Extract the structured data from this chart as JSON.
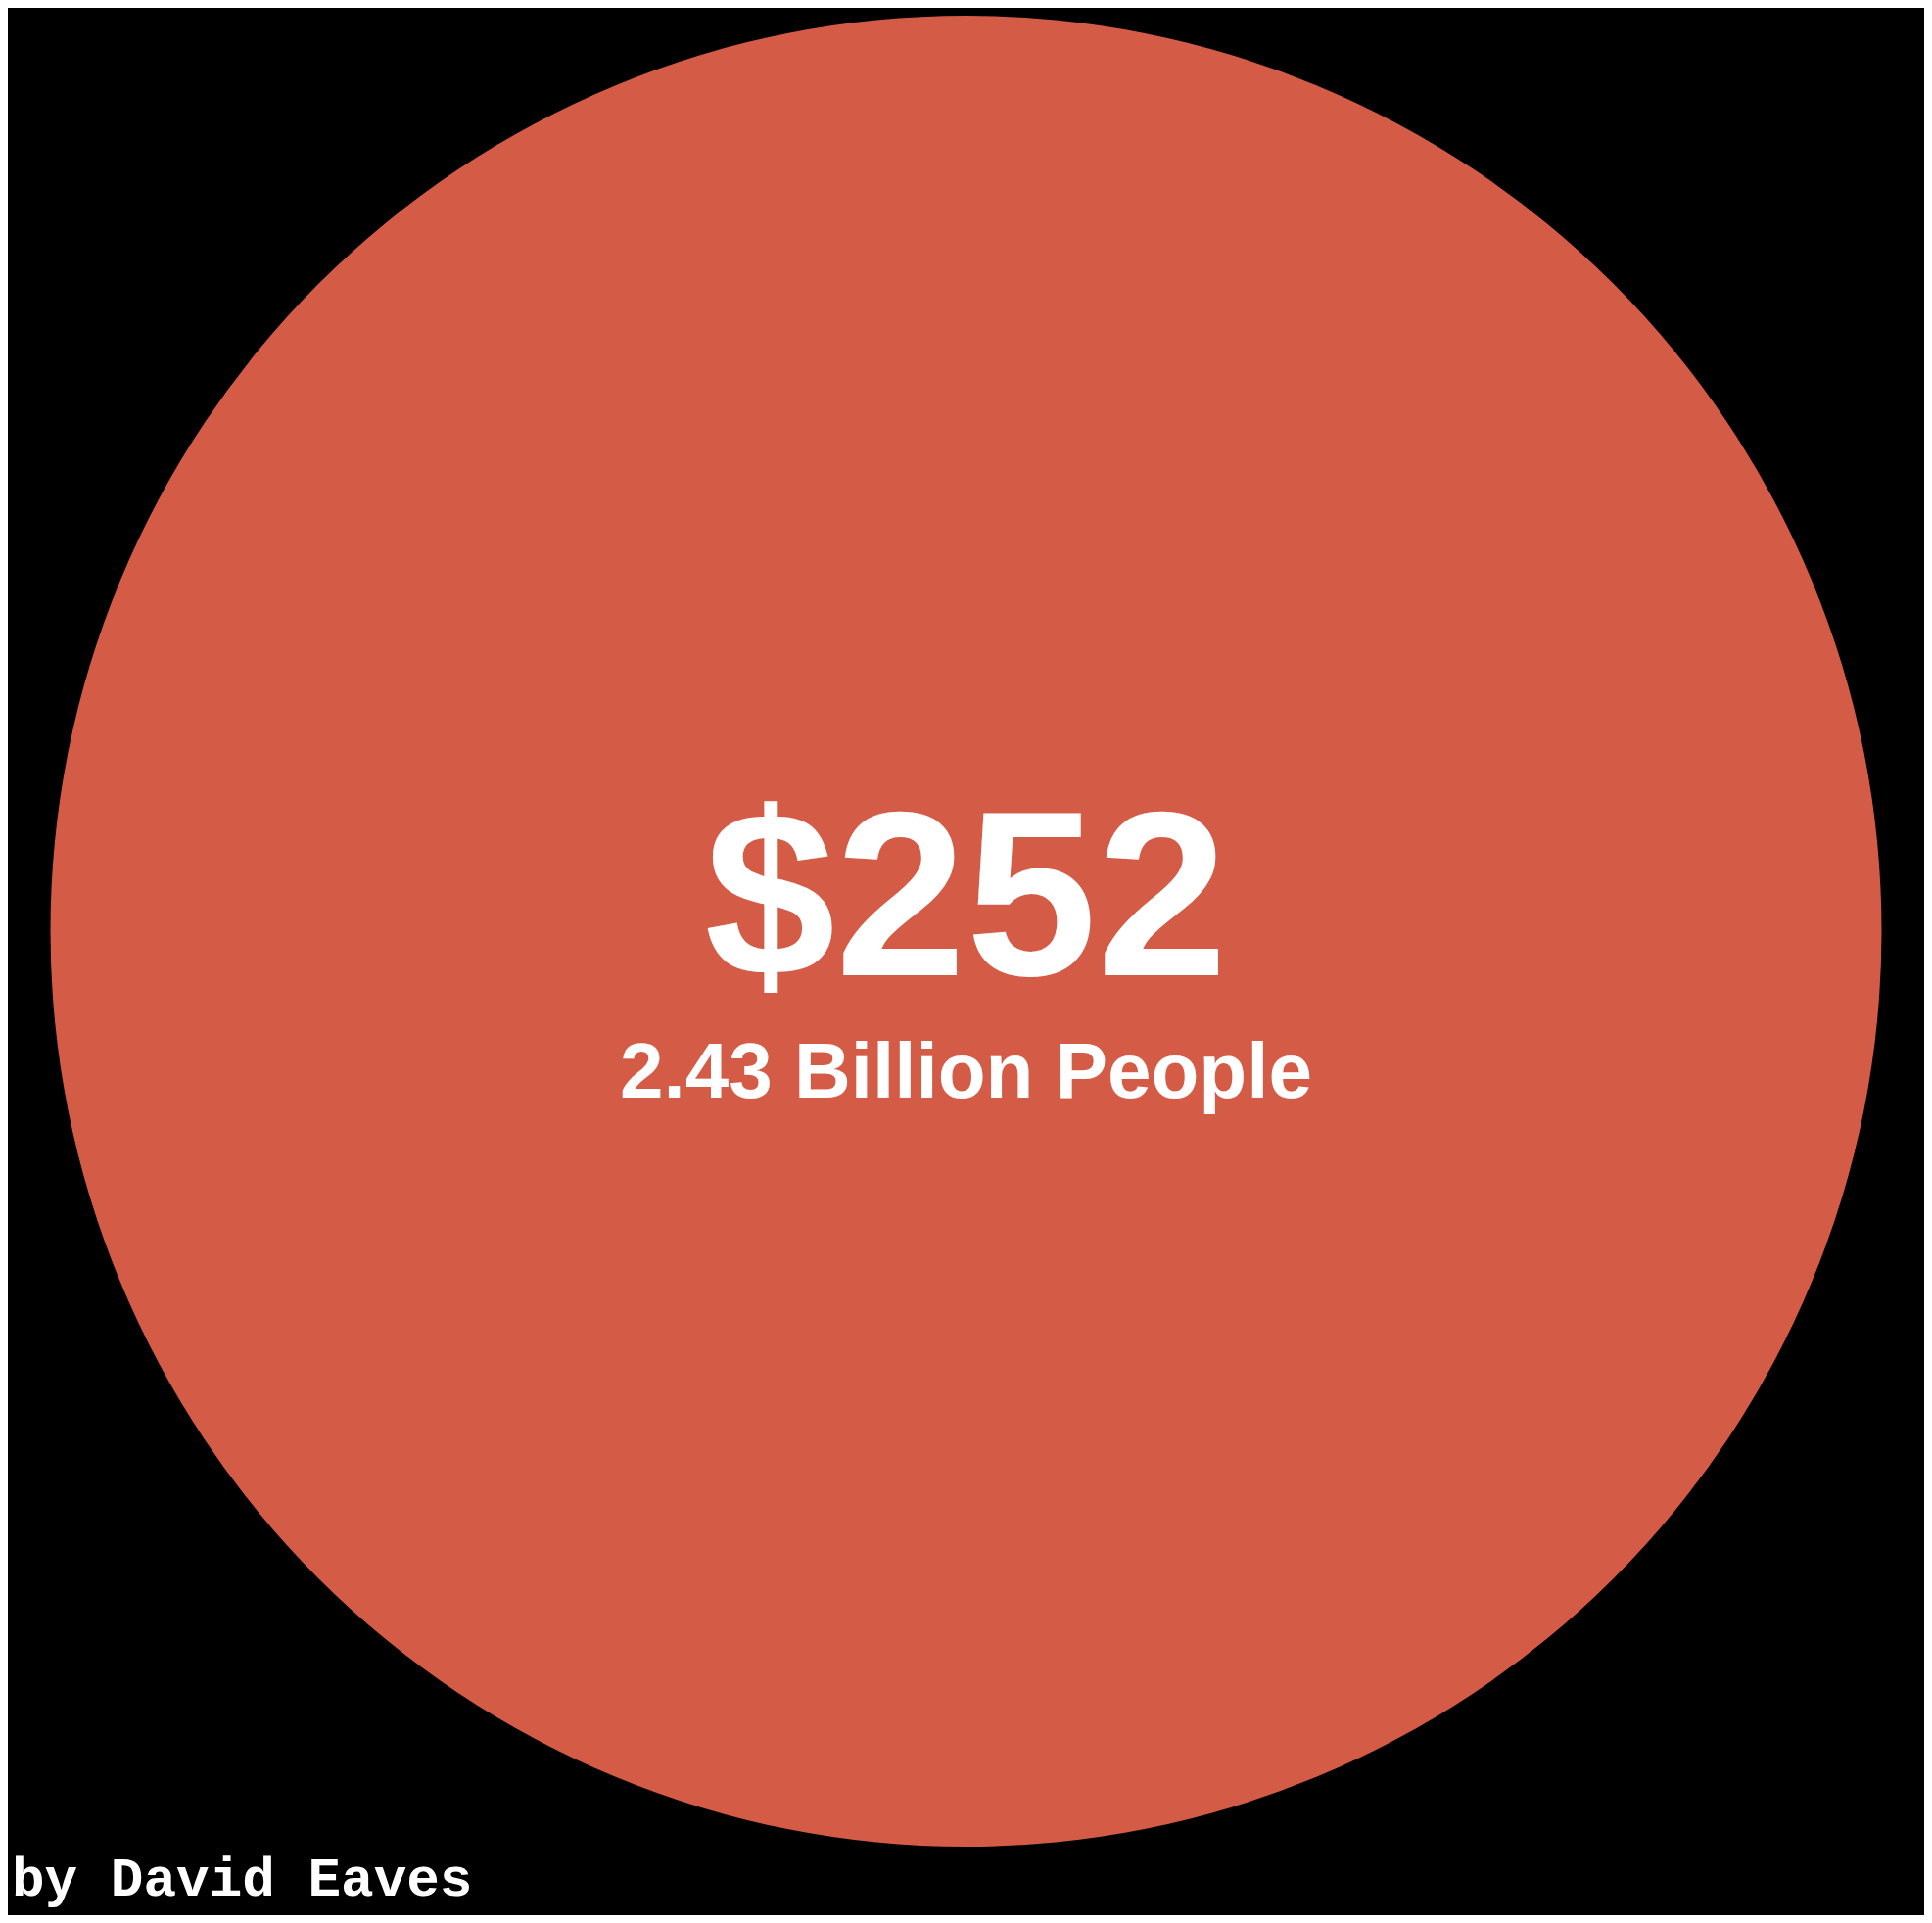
{
  "chart_data": {
    "type": "pie",
    "categories": [
      null
    ],
    "values": [
      100
    ],
    "colors": [
      "#d45c47"
    ],
    "annotations": [
      "$252",
      "2.43 Billion People",
      "by David Eaves"
    ],
    "legend": false
  }
}
